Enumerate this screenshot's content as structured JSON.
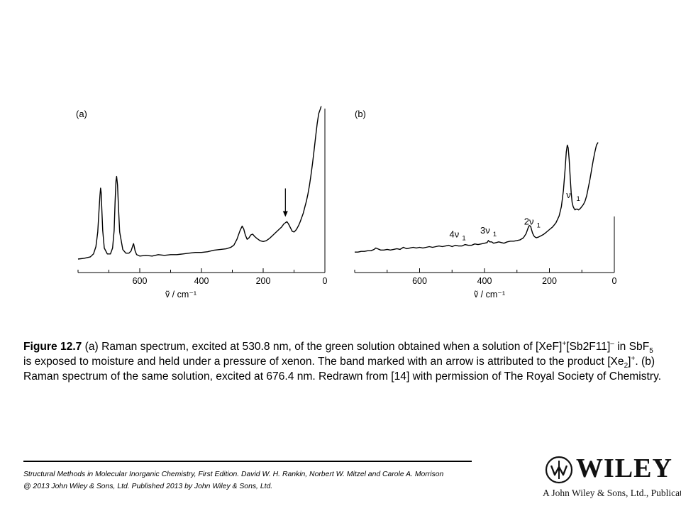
{
  "chart_data": [
    {
      "type": "line",
      "panel_label": "(a)",
      "xlabel": "ṽ / cm⁻¹",
      "x_ticks": [
        600,
        400,
        200,
        0
      ],
      "xlim": [
        800,
        0
      ],
      "y_axis_shown": false,
      "series": [
        {
          "x": [
            800,
            780,
            760,
            750,
            742,
            736,
            732,
            729,
            727,
            725,
            723,
            720,
            715,
            705,
            695,
            688,
            683,
            680,
            677,
            675,
            672,
            669,
            665,
            655,
            645,
            635,
            628,
            622,
            620,
            618,
            615,
            610,
            600,
            580,
            560,
            540,
            520,
            500,
            480,
            460,
            440,
            420,
            400,
            380,
            360,
            340,
            320,
            305,
            295,
            285,
            275,
            268,
            263,
            258,
            252,
            246,
            240,
            234,
            228,
            220,
            210,
            200,
            190,
            180,
            170,
            160,
            150,
            140,
            133,
            127,
            123,
            118,
            112,
            106,
            100,
            95,
            90,
            85,
            80,
            75,
            70,
            65,
            60,
            55,
            50,
            45,
            40,
            35,
            30,
            25,
            20,
            15,
            12
          ],
          "y": [
            1,
            2,
            4,
            8,
            18,
            38,
            68,
            88,
            98,
            92,
            70,
            40,
            16,
            8,
            8,
            16,
            40,
            78,
            108,
            114,
            102,
            72,
            38,
            14,
            9,
            9,
            12,
            20,
            22,
            18,
            12,
            7,
            5,
            6,
            5,
            7,
            6,
            7,
            7,
            8,
            9,
            10,
            10,
            11,
            13,
            14,
            15,
            17,
            20,
            28,
            40,
            46,
            42,
            34,
            28,
            30,
            34,
            35,
            32,
            29,
            26,
            25,
            26,
            29,
            33,
            37,
            41,
            45,
            49,
            51,
            52,
            49,
            44,
            39,
            38,
            40,
            43,
            47,
            52,
            58,
            64,
            72,
            80,
            90,
            102,
            116,
            132,
            150,
            168,
            186,
            200,
            206,
            210
          ]
        }
      ],
      "annotations": [
        {
          "type": "arrow",
          "x": 128,
          "note": "band attributed to [Xe2]+"
        }
      ]
    },
    {
      "type": "line",
      "panel_label": "(b)",
      "xlabel": "ṽ / cm⁻¹",
      "x_ticks": [
        600,
        400,
        200,
        0
      ],
      "xlim": [
        800,
        0
      ],
      "y_axis_shown": false,
      "series": [
        {
          "x": [
            800,
            790,
            780,
            770,
            760,
            750,
            740,
            735,
            730,
            720,
            710,
            700,
            690,
            680,
            670,
            660,
            650,
            640,
            630,
            620,
            610,
            600,
            590,
            580,
            570,
            560,
            550,
            540,
            530,
            520,
            510,
            500,
            490,
            480,
            470,
            460,
            450,
            440,
            430,
            420,
            410,
            400,
            392,
            388,
            384,
            378,
            372,
            364,
            356,
            348,
            340,
            330,
            320,
            310,
            300,
            290,
            280,
            272,
            266,
            262,
            258,
            255,
            252,
            248,
            244,
            240,
            234,
            226,
            218,
            210,
            200,
            190,
            180,
            170,
            163,
            157,
            152,
            148,
            145,
            142,
            139,
            136,
            133,
            130,
            127,
            124,
            121,
            118,
            114,
            110,
            105,
            100,
            95,
            90,
            85,
            80,
            75,
            70,
            65,
            60,
            55,
            50
          ],
          "y": [
            5,
            5,
            6,
            6,
            7,
            7,
            9,
            11,
            10,
            8,
            8,
            9,
            8,
            9,
            10,
            9,
            12,
            10,
            11,
            12,
            11,
            12,
            11,
            12,
            13,
            12,
            13,
            14,
            13,
            14,
            15,
            13,
            15,
            14,
            14,
            16,
            15,
            15,
            17,
            16,
            17,
            18,
            19,
            22,
            20,
            20,
            18,
            19,
            20,
            19,
            18,
            20,
            21,
            21,
            22,
            23,
            26,
            32,
            40,
            44,
            43,
            38,
            33,
            29,
            27,
            26,
            27,
            29,
            31,
            34,
            38,
            42,
            48,
            58,
            72,
            95,
            125,
            152,
            162,
            158,
            140,
            115,
            92,
            78,
            72,
            69,
            67,
            68,
            68,
            67,
            69,
            72,
            75,
            80,
            88,
            100,
            112,
            126,
            140,
            152,
            162,
            166
          ]
        }
      ],
      "annotations": [
        {
          "type": "label",
          "text": "4ν",
          "subscript": "1",
          "x": 480
        },
        {
          "type": "label",
          "text": "3ν",
          "subscript": "1",
          "x": 385
        },
        {
          "type": "label",
          "text": "2ν",
          "subscript": "1",
          "x": 250
        },
        {
          "type": "label",
          "text": "ν",
          "subscript": "1",
          "x": 128
        }
      ]
    }
  ],
  "caption": {
    "lead": "Figure 12.7",
    "s1": " (a) Raman spectrum, excited at 530.8 nm, of the green solution obtained when a solution of [XeF]",
    "sup1": "+",
    "s2": "[Sb2F11]",
    "sup2": "–",
    "s3": " in SbF",
    "sub1": "5",
    "s4": " is exposed to moisture and held under a pressure of xenon. The band marked with an arrow is attributed to the product [Xe",
    "sub2": "2",
    "s5": "]",
    "sup3": "+",
    "s6": ". (b) Raman spectrum of the same solution, excited at 676.4 nm. Redrawn from [14] with permission of The Royal Society of Chemistry."
  },
  "footer": {
    "line1": "Structural Methods in Molecular Inorganic Chemistry, First Edition. David W. H. Rankin, Norbert W. Mitzel and Carole A. Morrison",
    "line2": "@ 2013 John Wiley & Sons, Ltd. Published 2013 by John Wiley & Sons, Ltd."
  },
  "logo": {
    "word": "WILEY",
    "tagline": "A John Wiley & Sons, Ltd., Publication"
  }
}
